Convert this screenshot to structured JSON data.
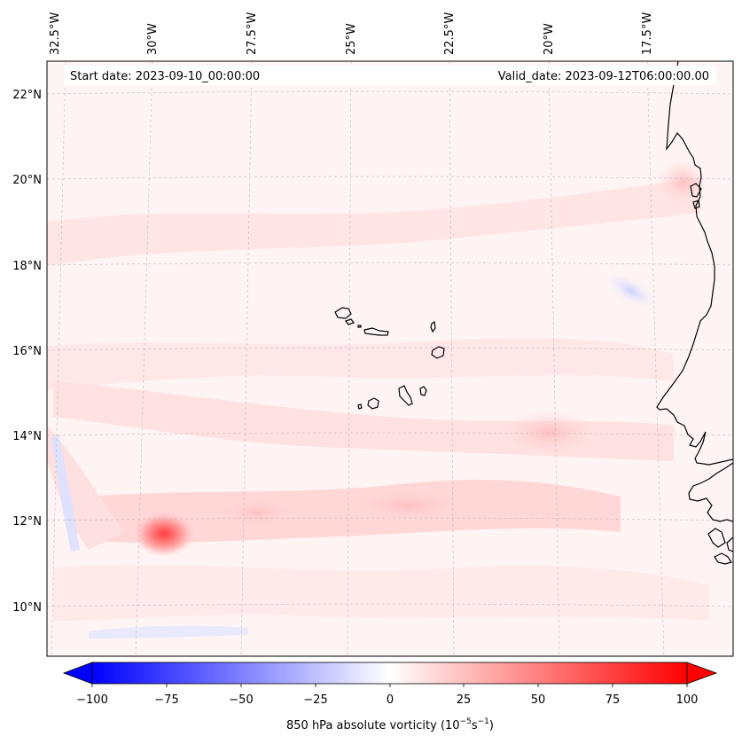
{
  "map": {
    "start_label": "Start date: 2023-09-10_00:00:00",
    "valid_label": "Valid_date: 2023-09-12T06:00:00.00",
    "lon_labels": [
      "32.5°W",
      "30°W",
      "27.5°W",
      "25°W",
      "22.5°W",
      "20°W",
      "17.5°W"
    ],
    "lat_labels": [
      "22°N",
      "20°N",
      "18°N",
      "16°N",
      "14°N",
      "12°N",
      "10°N"
    ],
    "features": [
      "cape-verde-islands",
      "west-africa-coastline",
      "vorticity-max"
    ]
  },
  "colorbar": {
    "ticks": [
      "−100",
      "−75",
      "−50",
      "−25",
      "0",
      "25",
      "50",
      "75",
      "100"
    ],
    "label_prefix": "850 hPa absolute vorticity (10",
    "label_exp1": "−5",
    "label_mid": "s",
    "label_exp2": "−1",
    "label_suffix": ")"
  },
  "colors": {
    "negative": "#0000ff",
    "positive": "#ff0000",
    "zero": "#ffffff",
    "land_line": "#000000"
  }
}
